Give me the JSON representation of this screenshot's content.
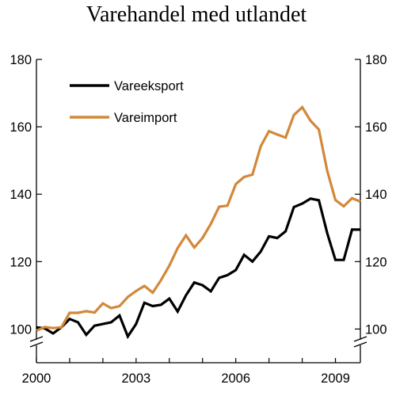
{
  "chart_data": {
    "type": "line",
    "title": "Varehandel med utlandet",
    "xlabel": "",
    "ylabel": "",
    "xlim": [
      2000,
      2009.75
    ],
    "ylim": [
      90,
      180
    ],
    "axis_break": true,
    "grid": false,
    "legend_position": "top-left",
    "x_ticks": [
      {
        "value": 2000,
        "label": "2000"
      },
      {
        "value": 2003,
        "label": "2003"
      },
      {
        "value": 2006,
        "label": "2006"
      },
      {
        "value": 2009,
        "label": "2009"
      }
    ],
    "y_ticks": [
      {
        "value": 100,
        "label": "100"
      },
      {
        "value": 120,
        "label": "120"
      },
      {
        "value": 140,
        "label": "140"
      },
      {
        "value": 160,
        "label": "160"
      },
      {
        "value": 180,
        "label": "180"
      }
    ],
    "x": [
      2000.0,
      2000.25,
      2000.5,
      2000.75,
      2001.0,
      2001.25,
      2001.5,
      2001.75,
      2002.0,
      2002.25,
      2002.5,
      2002.75,
      2003.0,
      2003.25,
      2003.5,
      2003.75,
      2004.0,
      2004.25,
      2004.5,
      2004.75,
      2005.0,
      2005.25,
      2005.5,
      2005.75,
      2006.0,
      2006.25,
      2006.5,
      2006.75,
      2007.0,
      2007.25,
      2007.5,
      2007.75,
      2008.0,
      2008.25,
      2008.5,
      2008.75,
      2009.0,
      2009.25,
      2009.5,
      2009.75
    ],
    "series": [
      {
        "name": "Vareeksport",
        "color": "#000000",
        "values": [
          100.5,
          100.2,
          98.7,
          100.5,
          103.0,
          102.0,
          98.3,
          101.0,
          101.5,
          102.0,
          104.0,
          97.8,
          101.5,
          107.8,
          106.8,
          107.2,
          109.0,
          105.2,
          110.0,
          113.8,
          113.0,
          111.2,
          115.2,
          116.0,
          117.5,
          122.0,
          120.0,
          123.0,
          127.5,
          127.0,
          129.0,
          136.2,
          137.2,
          138.7,
          138.2,
          128.5,
          120.5,
          120.5,
          129.5,
          129.5
        ]
      },
      {
        "name": "Vareimport",
        "color": "#D2883A",
        "values": [
          99.5,
          100.6,
          100.3,
          100.5,
          104.8,
          104.8,
          105.3,
          104.9,
          107.6,
          106.2,
          106.8,
          109.5,
          111.3,
          112.8,
          110.8,
          114.5,
          118.8,
          124.0,
          127.8,
          124.2,
          127.0,
          131.2,
          136.3,
          136.6,
          143.0,
          145.1,
          145.8,
          154.2,
          158.7,
          157.7,
          156.8,
          163.5,
          165.8,
          161.8,
          159.2,
          147.0,
          138.3,
          136.4,
          138.8,
          137.8
        ]
      }
    ]
  }
}
